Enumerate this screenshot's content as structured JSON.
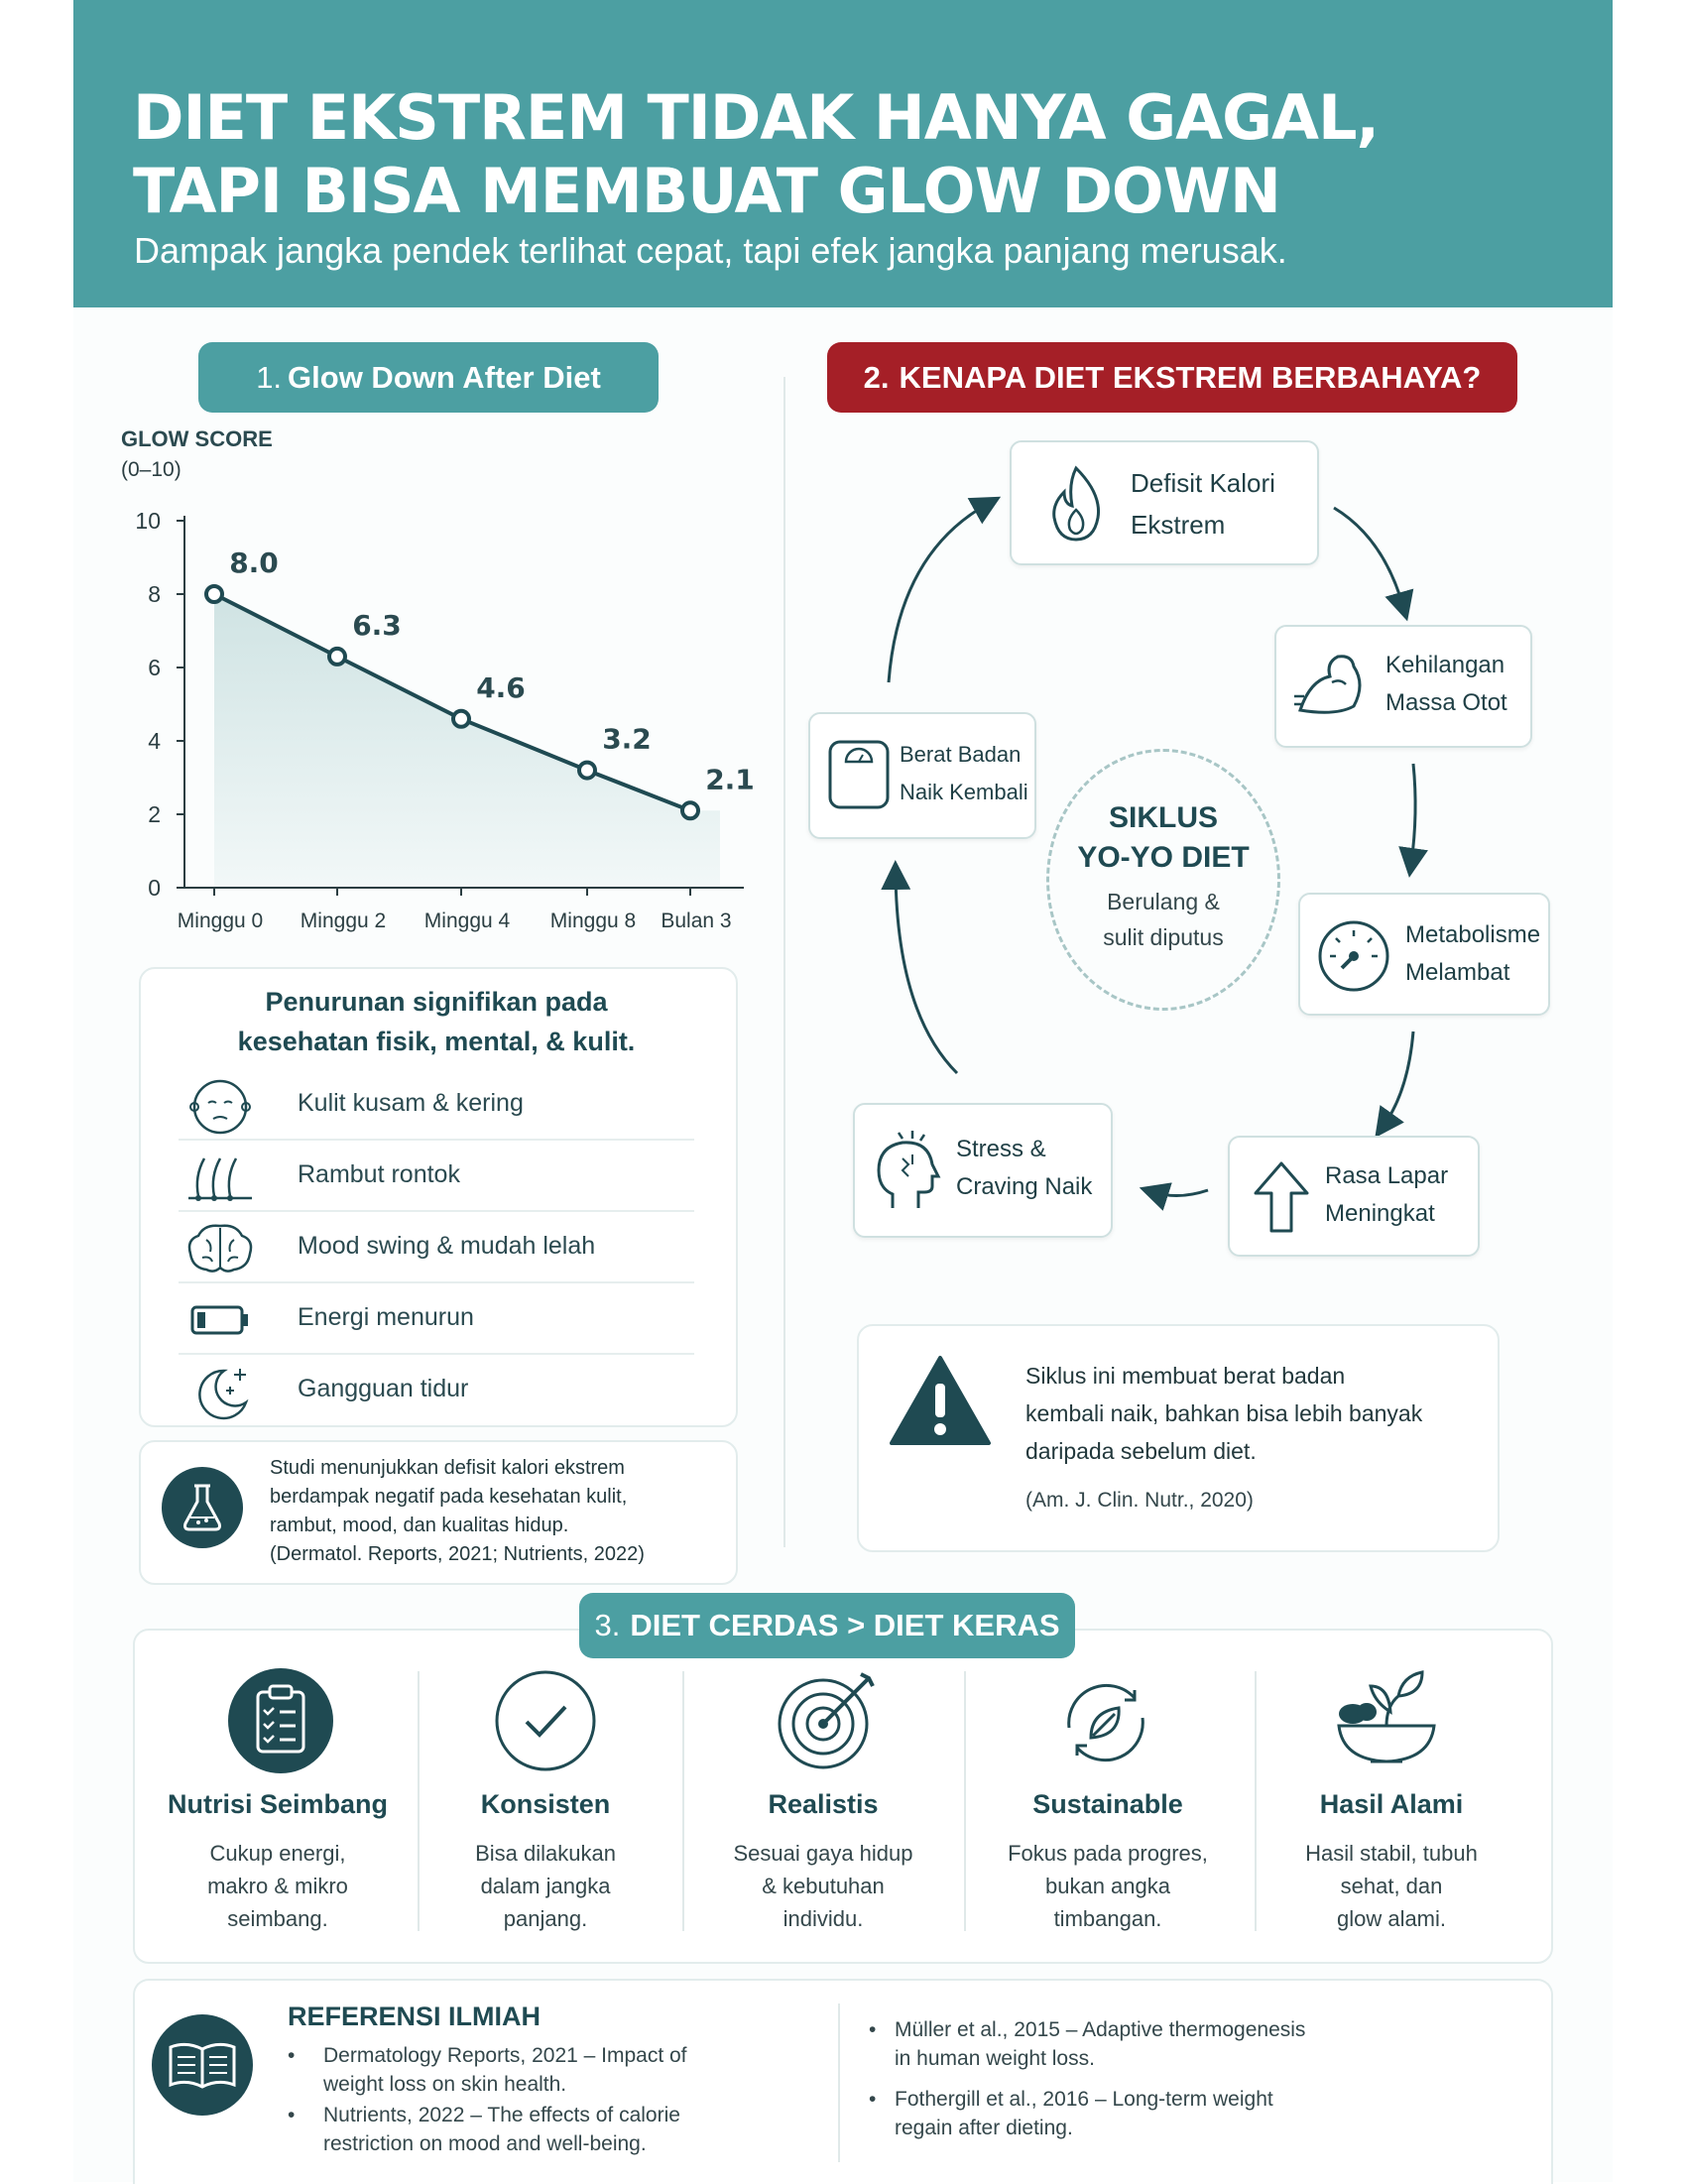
{
  "header": {
    "title_line1": "DIET EKSTREM TIDAK HANYA GAGAL,",
    "title_line2": "TAPI BISA MEMBUAT GLOW DOWN",
    "subtitle": "Dampak jangka pendek terlihat cepat, tapi efek jangka panjang merusak."
  },
  "section1": {
    "number": "1.",
    "label": "Glow Down After Diet"
  },
  "chart_data": {
    "type": "line",
    "title": "",
    "ylabel": "GLOW SCORE",
    "ylabel_sub": "(0–10)",
    "xlabel": "",
    "categories": [
      "Minggu 0",
      "Minggu 2",
      "Minggu 4",
      "Minggu 8",
      "Bulan 3"
    ],
    "values": [
      8.0,
      6.3,
      4.6,
      3.2,
      2.1
    ],
    "value_labels": [
      "8.0",
      "6.3",
      "4.6",
      "3.2",
      "2.1"
    ],
    "yticks": [
      "0",
      "2",
      "4",
      "6",
      "8",
      "10"
    ],
    "ylim": [
      0,
      10
    ],
    "grid": false,
    "area_fill": true,
    "line_color": "#1f4a52"
  },
  "symptoms": {
    "title_line1": "Penurunan signifikan pada",
    "title_line2": "kesehatan fisik, mental, & kulit.",
    "items": [
      {
        "label": "Kulit kusam & kering",
        "icon": "face-icon"
      },
      {
        "label": "Rambut rontok",
        "icon": "hair-icon"
      },
      {
        "label": "Mood swing & mudah lelah",
        "icon": "brain-icon"
      },
      {
        "label": "Energi menurun",
        "icon": "low-battery-icon"
      },
      {
        "label": "Gangguan tidur",
        "icon": "moon-icon"
      }
    ]
  },
  "study": {
    "line1": "Studi menunjukkan defisit kalori ekstrem",
    "line2": "berdampak negatif pada kesehatan kulit,",
    "line3": "rambut, mood, dan kualitas hidup.",
    "line4": "(Dermatol. Reports, 2021; Nutrients, 2022)"
  },
  "section2": {
    "number": "2.",
    "label": "KENAPA DIET EKSTREM BERBAHAYA?"
  },
  "cycle": {
    "center_title1": "SIKLUS",
    "center_title2": "YO-YO DIET",
    "center_sub1": "Berulang &",
    "center_sub2": "sulit diputus",
    "steps": [
      {
        "line1": "Defisit Kalori",
        "line2": "Ekstrem"
      },
      {
        "line1": "Kehilangan",
        "line2": "Massa Otot"
      },
      {
        "line1": "Metabolisme",
        "line2": "Melambat"
      },
      {
        "line1": "Rasa Lapar",
        "line2": "Meningkat"
      },
      {
        "line1": "Stress &",
        "line2": "Craving Naik"
      },
      {
        "line1": "Berat Badan",
        "line2": "Naik Kembali"
      }
    ]
  },
  "warning": {
    "line1": "Siklus ini membuat berat badan",
    "line2": "kembali naik, bahkan bisa lebih banyak",
    "line3": "daripada sebelum diet.",
    "source": "(Am. J. Clin. Nutr., 2020)"
  },
  "section3": {
    "number": "3.",
    "label": "DIET CERDAS > DIET KERAS",
    "columns": [
      {
        "title": "Nutrisi Seimbang",
        "d1": "Cukup energi,",
        "d2": "makro & mikro",
        "d3": "seimbang.",
        "icon": "clipboard-checklist-icon"
      },
      {
        "title": "Konsisten",
        "d1": "Bisa dilakukan",
        "d2": "dalam jangka",
        "d3": "panjang.",
        "icon": "checkmark-circle-icon"
      },
      {
        "title": "Realistis",
        "d1": "Sesuai gaya hidup",
        "d2": "& kebutuhan",
        "d3": "individu.",
        "icon": "target-icon"
      },
      {
        "title": "Sustainable",
        "d1": "Fokus pada progres,",
        "d2": "bukan angka",
        "d3": "timbangan.",
        "icon": "leaf-cycle-icon"
      },
      {
        "title": "Hasil Alami",
        "d1": "Hasil stabil, tubuh",
        "d2": "sehat, dan",
        "d3": "glow alami.",
        "icon": "bowl-plant-icon"
      }
    ]
  },
  "references": {
    "title": "REFERENSI ILMIAH",
    "left": [
      {
        "l1": "Dermatology Reports, 2021 – Impact of",
        "l2": "weight loss on skin health."
      },
      {
        "l1": "Nutrients, 2022 – The effects of calorie",
        "l2": "restriction on mood and well-being."
      }
    ],
    "right": [
      {
        "l1": "Müller et al., 2015 – Adaptive thermogenesis",
        "l2": "in human weight loss."
      },
      {
        "l1": "Fothergill et al., 2016 – Long-term weight",
        "l2": "regain after dieting."
      }
    ]
  },
  "colors": {
    "teal": "#4c9fa2",
    "dark_teal": "#1f4a52",
    "red": "#a51f27"
  }
}
